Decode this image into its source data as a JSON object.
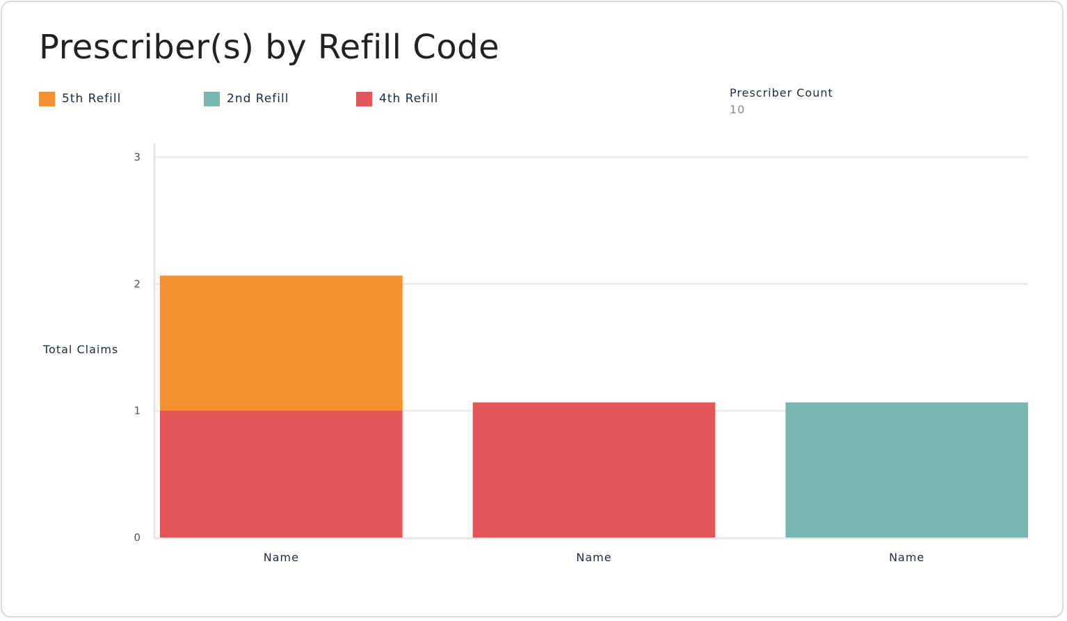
{
  "title": "Prescriber(s) by Refill Code",
  "legend": [
    {
      "label": "5th Refill",
      "color": "#f39030"
    },
    {
      "label": "2nd Refill",
      "color": "#79b6b0"
    },
    {
      "label": "4th Refill",
      "color": "#e2565a"
    }
  ],
  "metric": {
    "label": "Prescriber Count",
    "value": "10"
  },
  "chart_data": {
    "type": "bar",
    "stacked": true,
    "categories": [
      "Name",
      "Name",
      "Name"
    ],
    "series": [
      {
        "name": "4th Refill",
        "color": "#e2565a",
        "values": [
          1,
          1,
          0
        ]
      },
      {
        "name": "2nd Refill",
        "color": "#79b6b0",
        "values": [
          0,
          0,
          1
        ]
      },
      {
        "name": "5th Refill",
        "color": "#f39030",
        "values": [
          1,
          0,
          0
        ]
      }
    ],
    "ylabel": "Total Claims",
    "xlabel": "",
    "ylim": [
      0,
      3
    ],
    "yticks": [
      "0",
      "1",
      "2",
      "3"
    ],
    "grid": true,
    "legend_position": "top-left"
  }
}
